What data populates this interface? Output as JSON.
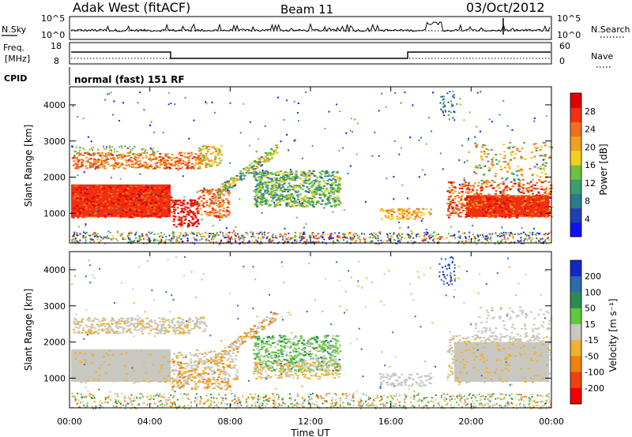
{
  "header": {
    "site": "Adak West (fitACF)",
    "beam": "Beam 11",
    "date": "03/Oct/2012"
  },
  "noise_panel": {
    "left_label": "N.Sky",
    "right_label": "N.Search",
    "tick_top": "10^5",
    "tick_bottom": "10^0"
  },
  "freq_panel": {
    "left_label_1": "Freq.",
    "left_label_2": "[MHz]",
    "right_label": "Nave",
    "left_ticks": [
      "18",
      "8"
    ],
    "right_ticks": [
      "60",
      "0"
    ]
  },
  "cpid_panel": {
    "left_label": "CPID",
    "text": "normal (fast) 151 RF"
  },
  "chart_data": [
    {
      "type": "heatmap",
      "name": "power",
      "ylabel": "Slant Range [km]",
      "yticks": [
        "1000",
        "2000",
        "3000",
        "4000"
      ],
      "ylim": [
        180,
        4500
      ],
      "colorbar_label": "Power [dB]",
      "colorbar_ticks": [
        "4",
        "8",
        "12",
        "16",
        "20",
        "24",
        "28"
      ],
      "colorbar_range": [
        0,
        32
      ],
      "colors": [
        "#1010ff",
        "#2040b0",
        "#2c7a8c",
        "#3aa06a",
        "#70c040",
        "#f0d020",
        "#f0a020",
        "#f07020",
        "#f03010",
        "#e00000"
      ]
    },
    {
      "type": "heatmap",
      "name": "velocity",
      "ylabel": "Slant Range [km]",
      "yticks": [
        "1000",
        "2000",
        "3000",
        "4000"
      ],
      "ylim": [
        180,
        4500
      ],
      "colorbar_label": "Velocity [m s⁻¹]",
      "colorbar_ticks": [
        "200",
        "100",
        "50",
        "15",
        "-15",
        "-50",
        "-100",
        "-200"
      ],
      "colors": [
        "#1428c8",
        "#2c6ab0",
        "#2c8c50",
        "#60c840",
        "#c8c8c0",
        "#f0b030",
        "#f08010",
        "#f04010",
        "#f00000"
      ]
    }
  ],
  "xaxis": {
    "label": "Time UT",
    "ticks": [
      "00:00",
      "04:00",
      "08:00",
      "12:00",
      "16:00",
      "20:00",
      "00:00"
    ]
  }
}
